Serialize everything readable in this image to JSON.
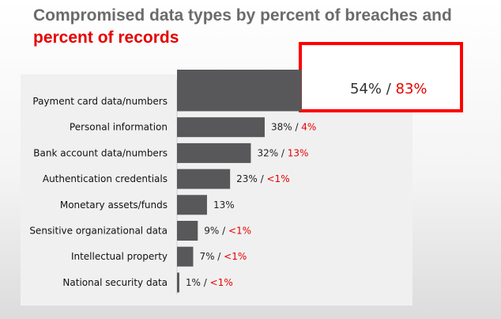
{
  "header": {
    "title_line1": "Compromised data types by percent of breaches and",
    "title_line2": "percent of records"
  },
  "colors": {
    "bar": "#58585a",
    "highlight_border": "#ff0000",
    "secondary_value": "#e60000"
  },
  "chart_data": {
    "type": "bar",
    "orientation": "horizontal",
    "title": "Compromised data types by percent of breaches and percent of records",
    "categories": [
      "Payment card data/numbers",
      "Personal information",
      "Bank account data/numbers",
      "Authentication credentials",
      "Monetary assets/funds",
      "Sensitive organizational data",
      "Intellectual property",
      "National security data"
    ],
    "series": [
      {
        "values": [
          54,
          38,
          32,
          23,
          13,
          9,
          7,
          1
        ]
      },
      {
        "values": [
          "83%",
          "4%",
          "13%",
          "<1%",
          null,
          "<1%",
          "<1%",
          "<1%"
        ]
      }
    ],
    "labels_breaches": [
      "54%",
      "38%",
      "32%",
      "23%",
      "13%",
      "9%",
      "7%",
      "1%"
    ],
    "labels_records": [
      "83%",
      "4%",
      "13%",
      "<1%",
      "",
      "<1%",
      "<1%",
      "<1%"
    ],
    "separator": " / ",
    "highlighted_index": 0,
    "xlim": [
      0,
      60
    ],
    "grid": false,
    "legend": "none"
  }
}
